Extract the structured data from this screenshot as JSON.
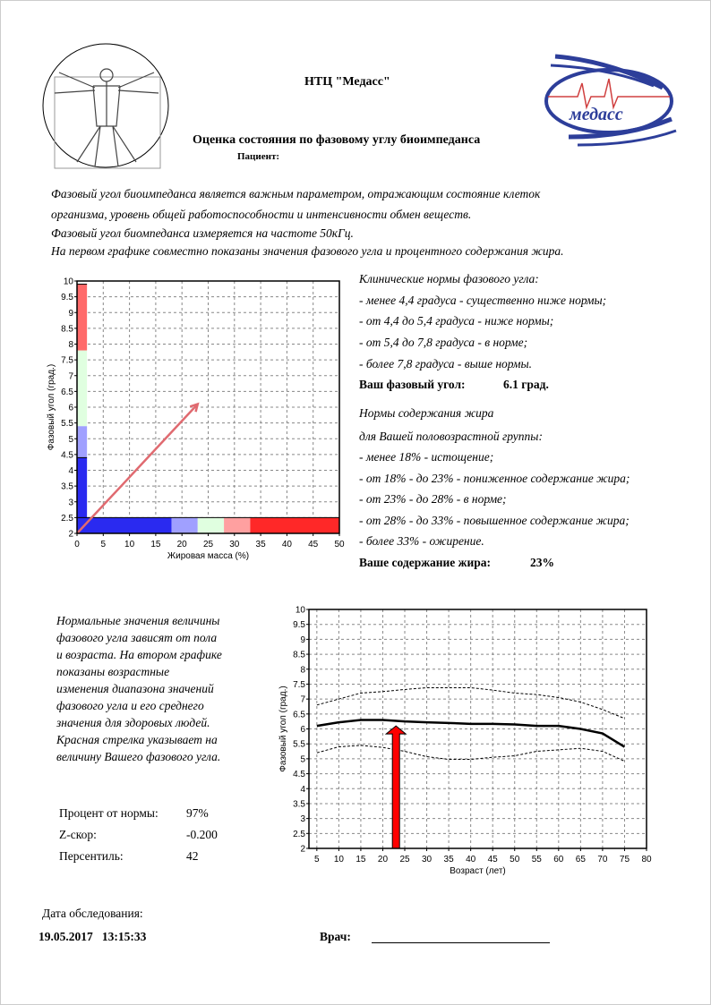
{
  "header": {
    "org": "НТЦ \"Медасс\"",
    "title": "Оценка состояния по фазовому углу биоимпеданса",
    "patient_label": "Пациент:",
    "logo_text": "медасс"
  },
  "intro": [
    "Фазовый угол биоимпеданса является важным параметром, отражающим состояние клеток",
    "организма, уровень общей работоспособности и интенсивности обмен веществ.",
    "Фазовый угол биомпеданса измеряется на частоте 50кГц.",
    "На первом графике совместно показаны значения фазового угла и процентного содержания жира."
  ],
  "phase_norms": {
    "heading": "Клинические нормы фазового угла:",
    "items": [
      "- менее 4,4 градуса - существенно ниже нормы;",
      "- от 4,4 до 5,4 градуса - ниже нормы;",
      "- от 5,4 до 7,8 градуса - в норме;",
      "- более 7,8 градуса - выше нормы."
    ],
    "result_label": "Ваш фазовый угол:",
    "result_value": "6.1 град."
  },
  "fat_norms": {
    "heading1": "Нормы содержания жира",
    "heading2": "для Вашей половозрастной группы:",
    "items": [
      "- менее 18% - истощение;",
      "- от 18% - до 23% - пониженное содержание жира;",
      "- от 23% - до 28% - в норме;",
      "- от 28% - до 33% - повышенное содержание жира;",
      "- более 33% - ожирение."
    ],
    "result_label": "Ваше содержание жира:",
    "result_value": "23%"
  },
  "age_note": [
    "Нормальные значения величины",
    "фазового угла зависят от пола",
    "и возраста. На втором графике",
    "показаны возрастные",
    "изменения диапазона значений",
    "фазового угла и его среднего",
    "значения для здоровых людей.",
    "Красная стрелка указывает на",
    "величину Вашего фазового угла."
  ],
  "stats": [
    {
      "label": "Процент от нормы:",
      "value": "97%"
    },
    {
      "label": "Z-скор:",
      "value": "-0.200"
    },
    {
      "label": "Персентиль:",
      "value": "42"
    }
  ],
  "footer": {
    "date_label": "Дата обследования:",
    "date_value": "19.05.2017   13:15:33",
    "doctor_label": "Врач:"
  },
  "chart_data": [
    {
      "type": "bar",
      "xlabel": "Жировая масса (%)",
      "ylabel": "Фазовый угол (град.)",
      "xlim": [
        0,
        50
      ],
      "ylim": [
        2,
        10
      ],
      "xticks": [
        0,
        5,
        10,
        15,
        20,
        25,
        30,
        35,
        40,
        45,
        50
      ],
      "yticks": [
        2,
        2.5,
        3,
        3.5,
        4,
        4.5,
        5,
        5.5,
        6,
        6.5,
        7,
        7.5,
        8,
        8.5,
        9,
        9.5,
        10
      ],
      "grid": true,
      "phase_bands": [
        {
          "from": 2.5,
          "to": 4.4,
          "color": "#2a2af0"
        },
        {
          "from": 4.4,
          "to": 5.4,
          "color": "#a0a0ff"
        },
        {
          "from": 5.4,
          "to": 7.8,
          "color": "#e0ffe0"
        },
        {
          "from": 7.8,
          "to": 9.9,
          "color": "#ff6a6a"
        }
      ],
      "fat_bands": [
        {
          "from": 0,
          "to": 18,
          "color": "#2a2af0"
        },
        {
          "from": 18,
          "to": 23,
          "color": "#a0a0ff"
        },
        {
          "from": 23,
          "to": 28,
          "color": "#e0ffe0"
        },
        {
          "from": 28,
          "to": 33,
          "color": "#ffa0a0"
        },
        {
          "from": 33,
          "to": 50,
          "color": "#ff2828"
        }
      ],
      "arrow": {
        "fat": 23,
        "phase": 6.1,
        "color": "#e06a70"
      }
    },
    {
      "type": "line",
      "xlabel": "Возраст (лет)",
      "ylabel": "Фазовый угол (град.)",
      "xlim": [
        3.2,
        80
      ],
      "ylim": [
        2,
        10
      ],
      "xticks": [
        5,
        10,
        15,
        20,
        25,
        30,
        35,
        40,
        45,
        50,
        55,
        60,
        65,
        70,
        75,
        80
      ],
      "yticks": [
        2,
        2.5,
        3,
        3.5,
        4,
        4.5,
        5,
        5.5,
        6,
        6.5,
        7,
        7.5,
        8,
        8.5,
        9,
        9.5,
        10
      ],
      "grid": true,
      "x": [
        5,
        10,
        15,
        20,
        25,
        30,
        35,
        40,
        45,
        50,
        55,
        60,
        65,
        70,
        75
      ],
      "series": [
        {
          "style": "solid",
          "values": [
            6.1,
            6.22,
            6.3,
            6.3,
            6.25,
            6.22,
            6.2,
            6.17,
            6.17,
            6.15,
            6.1,
            6.1,
            6.0,
            5.85,
            5.4
          ]
        },
        {
          "style": "dashed",
          "values": [
            6.8,
            7.0,
            7.2,
            7.25,
            7.32,
            7.38,
            7.38,
            7.38,
            7.3,
            7.2,
            7.15,
            7.05,
            6.9,
            6.65,
            6.35
          ]
        },
        {
          "style": "dashed",
          "values": [
            5.2,
            5.4,
            5.45,
            5.38,
            5.25,
            5.07,
            4.98,
            4.98,
            5.05,
            5.1,
            5.25,
            5.3,
            5.35,
            5.25,
            4.92
          ]
        }
      ],
      "arrow": {
        "age": 23,
        "phase": 6.1,
        "color": "#ff0000"
      }
    }
  ]
}
